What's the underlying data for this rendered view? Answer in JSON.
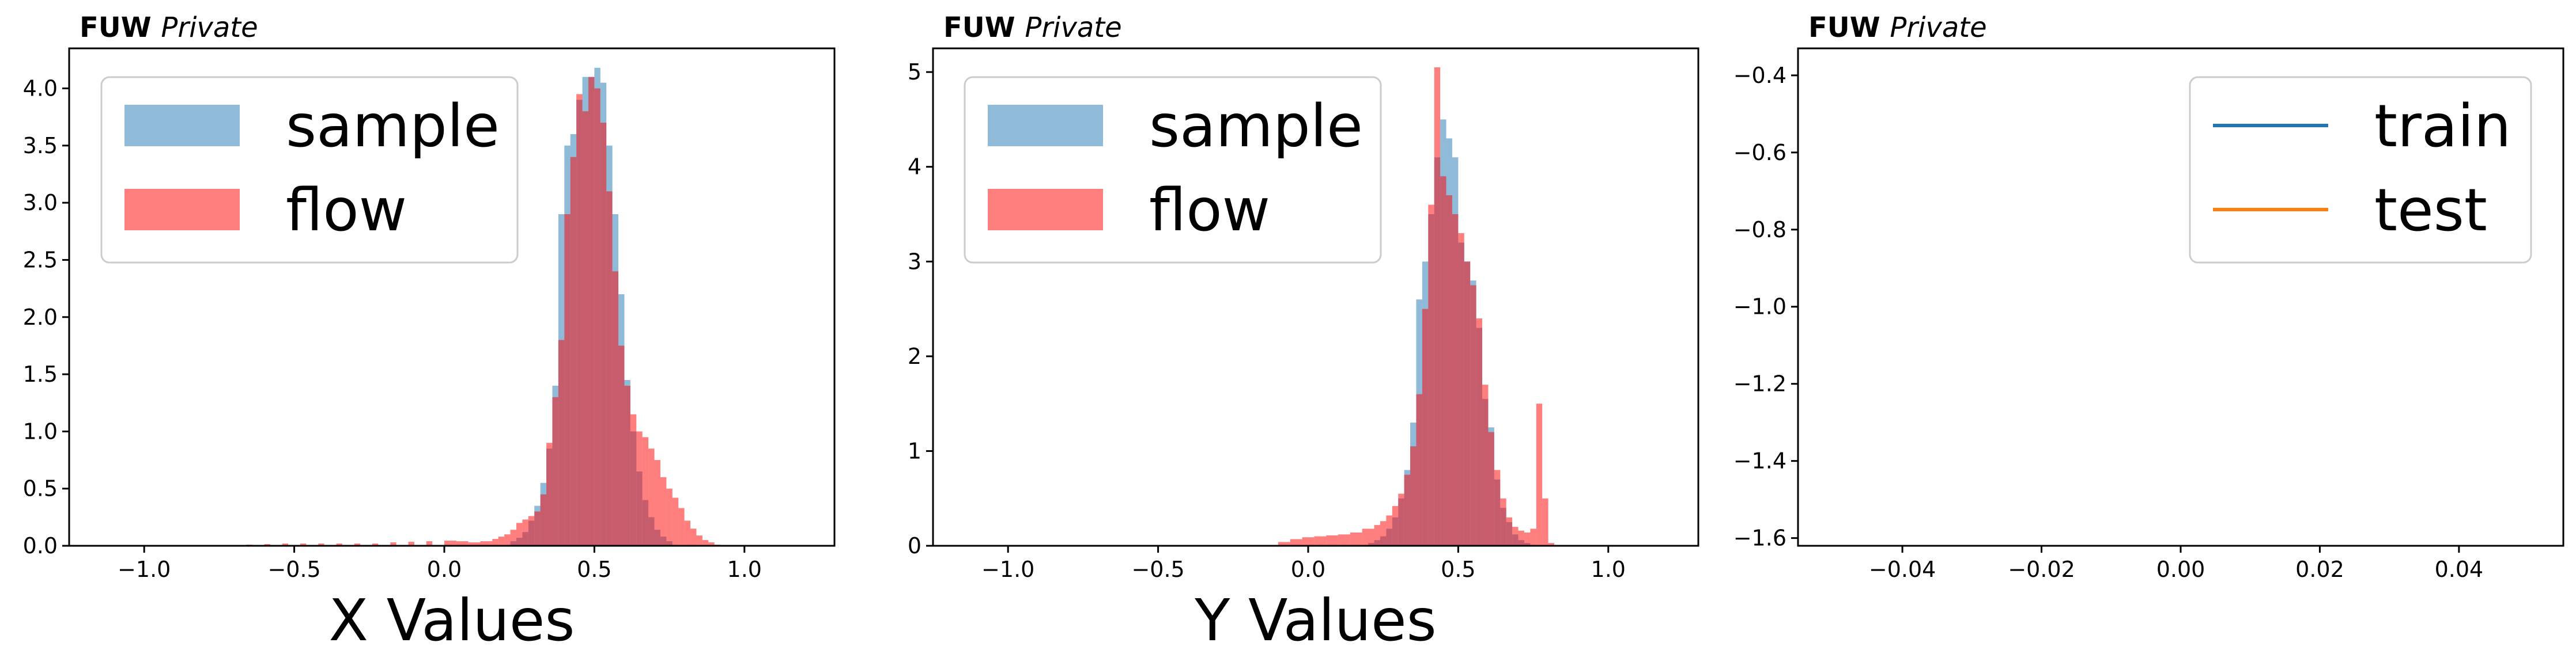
{
  "colors": {
    "sample": "#1f77b4",
    "flow": "#ff0000",
    "train": "#1f77b4",
    "test": "#ff7f0e"
  },
  "chart_data": [
    {
      "type": "bar",
      "tag_bold": "FUW",
      "tag_italic": "Private",
      "xlabel": "X Values",
      "xlim": [
        -1.25,
        1.3
      ],
      "ylim": [
        0,
        4.35
      ],
      "xticks": [
        "−1.0",
        "−0.5",
        "0.0",
        "0.5",
        "1.0"
      ],
      "xtick_values": [
        -1.0,
        -0.5,
        0.0,
        0.5,
        1.0
      ],
      "yticks": [
        "0.0",
        "0.5",
        "1.0",
        "1.5",
        "2.0",
        "2.5",
        "3.0",
        "3.5",
        "4.0"
      ],
      "ytick_values": [
        0.0,
        0.5,
        1.0,
        1.5,
        2.0,
        2.5,
        3.0,
        3.5,
        4.0
      ],
      "legend_position": "top-left",
      "series": [
        {
          "name": "sample",
          "color_key": "sample",
          "opacity": 0.5,
          "bins": [
            [
              0.22,
              0.04
            ],
            [
              0.24,
              0.07
            ],
            [
              0.26,
              0.12
            ],
            [
              0.28,
              0.22
            ],
            [
              0.3,
              0.35
            ],
            [
              0.32,
              0.55
            ],
            [
              0.34,
              0.85
            ],
            [
              0.36,
              1.4
            ],
            [
              0.38,
              2.9
            ],
            [
              0.4,
              3.5
            ],
            [
              0.42,
              3.6
            ],
            [
              0.44,
              3.9
            ],
            [
              0.46,
              4.1
            ],
            [
              0.48,
              4.1
            ],
            [
              0.5,
              4.18
            ],
            [
              0.52,
              4.05
            ],
            [
              0.54,
              3.5
            ],
            [
              0.56,
              2.9
            ],
            [
              0.58,
              2.2
            ],
            [
              0.6,
              1.45
            ],
            [
              0.62,
              1.0
            ],
            [
              0.64,
              0.65
            ],
            [
              0.66,
              0.4
            ],
            [
              0.68,
              0.25
            ],
            [
              0.7,
              0.14
            ],
            [
              0.72,
              0.08
            ],
            [
              0.74,
              0.04
            ]
          ]
        },
        {
          "name": "flow",
          "color_key": "flow",
          "opacity": 0.5,
          "bins": [
            [
              -0.66,
              0.01
            ],
            [
              -0.6,
              0.015
            ],
            [
              -0.54,
              0.02
            ],
            [
              -0.48,
              0.02
            ],
            [
              -0.42,
              0.02
            ],
            [
              -0.36,
              0.02
            ],
            [
              -0.3,
              0.02
            ],
            [
              -0.24,
              0.02
            ],
            [
              -0.18,
              0.03
            ],
            [
              -0.12,
              0.035
            ],
            [
              -0.06,
              0.04
            ],
            [
              0.0,
              0.045
            ],
            [
              0.04,
              0.04
            ],
            [
              0.08,
              0.03
            ],
            [
              0.12,
              0.04
            ],
            [
              0.16,
              0.06
            ],
            [
              0.18,
              0.08
            ],
            [
              0.2,
              0.1
            ],
            [
              0.22,
              0.14
            ],
            [
              0.24,
              0.2
            ],
            [
              0.26,
              0.23
            ],
            [
              0.28,
              0.26
            ],
            [
              0.3,
              0.3
            ],
            [
              0.32,
              0.45
            ],
            [
              0.34,
              0.9
            ],
            [
              0.36,
              1.3
            ],
            [
              0.38,
              1.8
            ],
            [
              0.4,
              2.9
            ],
            [
              0.42,
              3.4
            ],
            [
              0.44,
              3.95
            ],
            [
              0.46,
              3.8
            ],
            [
              0.48,
              4.1
            ],
            [
              0.5,
              4.0
            ],
            [
              0.52,
              3.7
            ],
            [
              0.54,
              3.1
            ],
            [
              0.56,
              2.4
            ],
            [
              0.58,
              1.75
            ],
            [
              0.6,
              1.4
            ],
            [
              0.62,
              1.15
            ],
            [
              0.64,
              1.0
            ],
            [
              0.66,
              0.95
            ],
            [
              0.68,
              0.85
            ],
            [
              0.7,
              0.75
            ],
            [
              0.72,
              0.6
            ],
            [
              0.74,
              0.5
            ],
            [
              0.76,
              0.42
            ],
            [
              0.78,
              0.33
            ],
            [
              0.8,
              0.22
            ],
            [
              0.82,
              0.15
            ],
            [
              0.84,
              0.09
            ],
            [
              0.86,
              0.05
            ],
            [
              0.88,
              0.03
            ],
            [
              0.9,
              0.01
            ]
          ]
        }
      ]
    },
    {
      "type": "bar",
      "tag_bold": "FUW",
      "tag_italic": "Private",
      "xlabel": "Y Values",
      "xlim": [
        -1.25,
        1.3
      ],
      "ylim": [
        0,
        5.25
      ],
      "xticks": [
        "−1.0",
        "−0.5",
        "0.0",
        "0.5",
        "1.0"
      ],
      "xtick_values": [
        -1.0,
        -0.5,
        0.0,
        0.5,
        1.0
      ],
      "yticks": [
        "0",
        "1",
        "2",
        "3",
        "4",
        "5"
      ],
      "ytick_values": [
        0,
        1,
        2,
        3,
        4,
        5
      ],
      "legend_position": "top-left",
      "series": [
        {
          "name": "sample",
          "color_key": "sample",
          "opacity": 0.5,
          "bins": [
            [
              0.2,
              0.03
            ],
            [
              0.22,
              0.06
            ],
            [
              0.24,
              0.1
            ],
            [
              0.26,
              0.18
            ],
            [
              0.28,
              0.3
            ],
            [
              0.3,
              0.5
            ],
            [
              0.32,
              0.8
            ],
            [
              0.34,
              1.3
            ],
            [
              0.36,
              2.6
            ],
            [
              0.38,
              3.0
            ],
            [
              0.4,
              3.5
            ],
            [
              0.42,
              4.1
            ],
            [
              0.44,
              4.5
            ],
            [
              0.46,
              4.3
            ],
            [
              0.48,
              4.1
            ],
            [
              0.5,
              3.2
            ],
            [
              0.52,
              3.0
            ],
            [
              0.54,
              2.8
            ],
            [
              0.56,
              2.3
            ],
            [
              0.58,
              1.55
            ],
            [
              0.6,
              1.25
            ],
            [
              0.62,
              0.7
            ],
            [
              0.64,
              0.4
            ],
            [
              0.66,
              0.25
            ],
            [
              0.68,
              0.12
            ],
            [
              0.7,
              0.06
            ],
            [
              0.72,
              0.03
            ]
          ]
        },
        {
          "name": "flow",
          "color_key": "flow",
          "opacity": 0.5,
          "bins": [
            [
              -0.1,
              0.04
            ],
            [
              -0.06,
              0.07
            ],
            [
              -0.02,
              0.09
            ],
            [
              0.02,
              0.1
            ],
            [
              0.06,
              0.11
            ],
            [
              0.1,
              0.12
            ],
            [
              0.14,
              0.14
            ],
            [
              0.18,
              0.18
            ],
            [
              0.22,
              0.22
            ],
            [
              0.24,
              0.26
            ],
            [
              0.26,
              0.32
            ],
            [
              0.28,
              0.42
            ],
            [
              0.3,
              0.55
            ],
            [
              0.32,
              0.75
            ],
            [
              0.34,
              1.05
            ],
            [
              0.36,
              1.6
            ],
            [
              0.38,
              2.5
            ],
            [
              0.4,
              3.6
            ],
            [
              0.42,
              5.05
            ],
            [
              0.44,
              3.9
            ],
            [
              0.46,
              3.7
            ],
            [
              0.48,
              3.5
            ],
            [
              0.5,
              3.3
            ],
            [
              0.52,
              3.0
            ],
            [
              0.54,
              2.75
            ],
            [
              0.56,
              2.4
            ],
            [
              0.58,
              1.7
            ],
            [
              0.6,
              1.2
            ],
            [
              0.62,
              0.8
            ],
            [
              0.64,
              0.5
            ],
            [
              0.66,
              0.3
            ],
            [
              0.68,
              0.2
            ],
            [
              0.7,
              0.16
            ],
            [
              0.72,
              0.14
            ],
            [
              0.74,
              0.18
            ],
            [
              0.76,
              1.5
            ],
            [
              0.78,
              0.5
            ],
            [
              0.8,
              0.03
            ]
          ]
        }
      ]
    },
    {
      "type": "line",
      "tag_bold": "FUW",
      "tag_italic": "Private",
      "xlabel": "",
      "xlim": [
        -0.055,
        0.055
      ],
      "ylim": [
        -1.62,
        -0.33
      ],
      "xticks": [
        "−0.04",
        "−0.02",
        "0.00",
        "0.02",
        "0.04"
      ],
      "xtick_values": [
        -0.04,
        -0.02,
        0.0,
        0.02,
        0.04
      ],
      "yticks": [
        "−1.6",
        "−1.4",
        "−1.2",
        "−1.0",
        "−0.8",
        "−0.6",
        "−0.4"
      ],
      "ytick_values": [
        -1.6,
        -1.4,
        -1.2,
        -1.0,
        -0.8,
        -0.6,
        -0.4
      ],
      "legend_position": "top-right",
      "series": [
        {
          "name": "train",
          "color_key": "train",
          "values": []
        },
        {
          "name": "test",
          "color_key": "test",
          "values": []
        }
      ]
    }
  ]
}
